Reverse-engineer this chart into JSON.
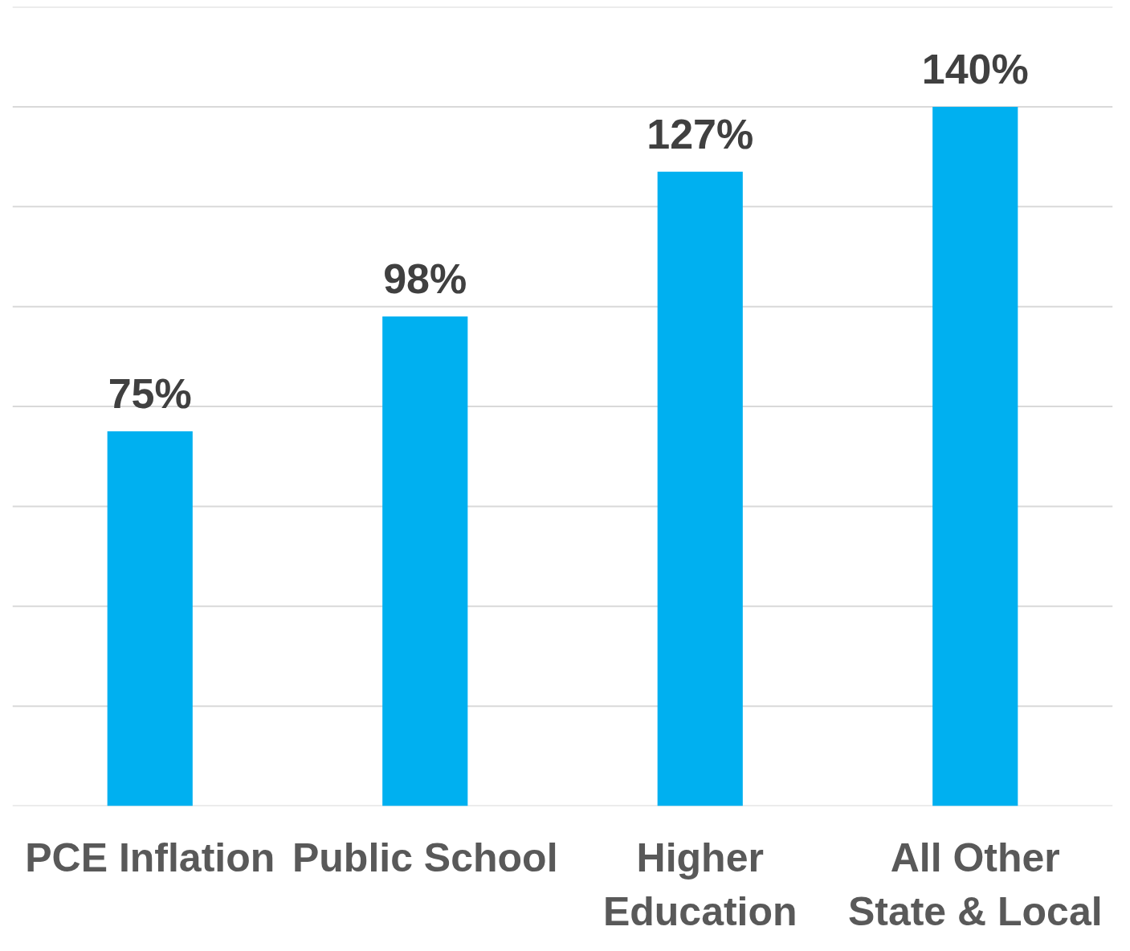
{
  "chart_data": {
    "type": "bar",
    "categories": [
      "PCE Inflation",
      "Public School",
      "Higher Education",
      "All Other State & Local"
    ],
    "values": [
      75,
      98,
      127,
      140
    ],
    "value_labels": [
      "75%",
      "98%",
      "127%",
      "140%"
    ],
    "color": "#00b0f0",
    "ylim": [
      0,
      160
    ],
    "yticks": [
      {
        "value": 0,
        "label": null
      },
      {
        "value": 20,
        "label": null
      },
      {
        "value": 40,
        "label": null
      },
      {
        "value": 60,
        "label": null
      },
      {
        "value": 80,
        "label": null
      },
      {
        "value": 100,
        "label": null
      },
      {
        "value": 120,
        "label": null
      },
      {
        "value": 140,
        "label": null
      },
      {
        "value": 160,
        "label": null
      }
    ],
    "grid": "y",
    "tick_labels": "x"
  }
}
